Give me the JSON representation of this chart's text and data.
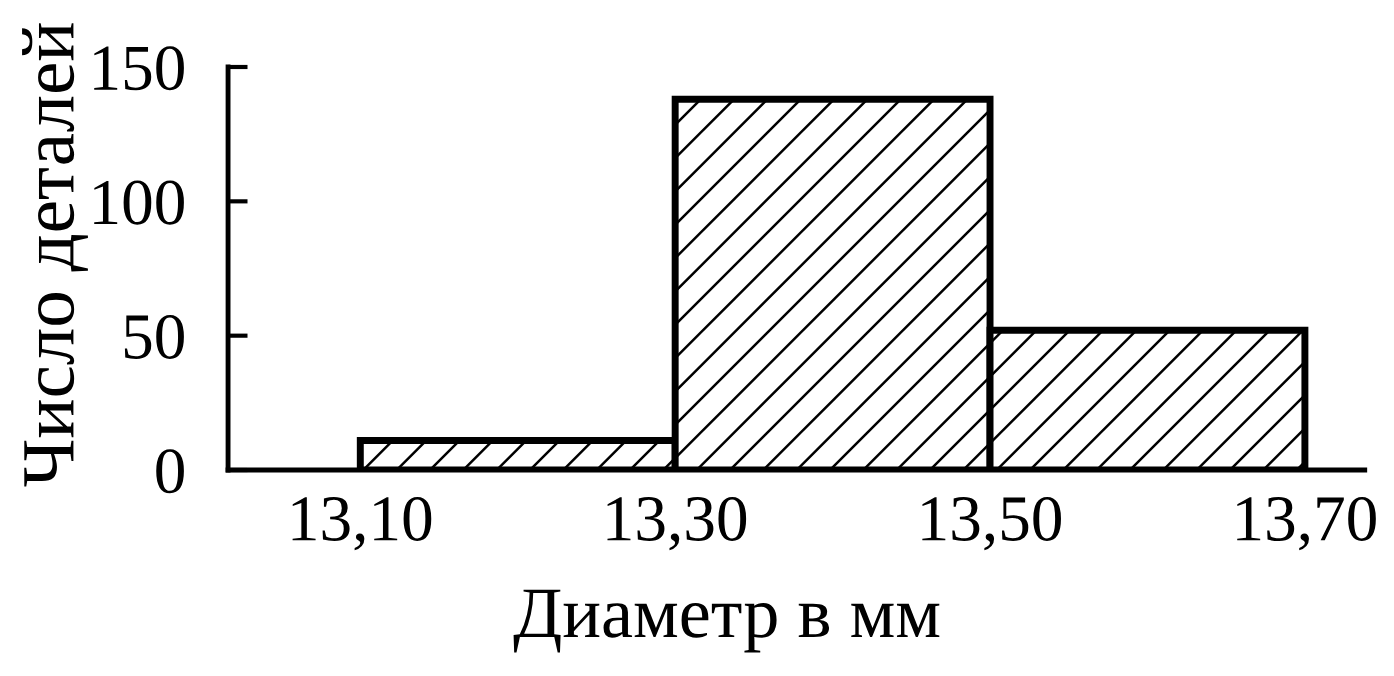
{
  "chart_data": {
    "type": "histogram",
    "xlabel": "Диаметр в мм",
    "ylabel": "Число деталей",
    "bins": [
      13.1,
      13.3,
      13.5,
      13.7
    ],
    "values": [
      11,
      138,
      52
    ],
    "color": "#000000",
    "xlim": [
      13.016,
      13.738
    ],
    "ylim": [
      0,
      150
    ],
    "xticks": [
      {
        "value": 13.1,
        "label": "13,10"
      },
      {
        "value": 13.3,
        "label": "13,30"
      },
      {
        "value": 13.5,
        "label": "13,50"
      },
      {
        "value": 13.7,
        "label": "13,70"
      }
    ],
    "yticks": [
      0,
      50,
      100,
      150
    ],
    "grid": false
  }
}
